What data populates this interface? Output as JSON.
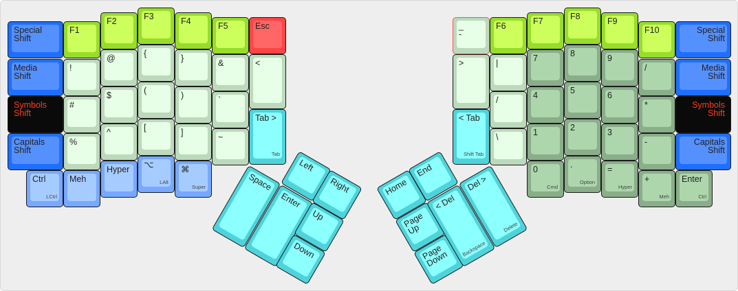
{
  "colors": {
    "blue": "#5590ff",
    "function_green": "#ccff5b",
    "symbol_green": "#e6ffe6",
    "number_green": "#add6ad",
    "cyan": "#8cffff",
    "modifier_blue": "#a6ccff",
    "esc_red": "#ff6666",
    "symbols_shift_text": "#ff3b1e"
  },
  "keys": [
    {
      "label": "Special\nShift",
      "color": "blue"
    },
    {
      "label": "Media\nShift",
      "color": "blue"
    },
    {
      "label": "Symbols\nShift",
      "color": "black"
    },
    {
      "label": "Capitals\nShift",
      "color": "blue"
    },
    {
      "label": "Ctrl",
      "sub": "LCtrl",
      "color": "lblue"
    },
    {
      "label": "F1",
      "color": "fgreen"
    },
    {
      "label": "!",
      "color": "lgreen"
    },
    {
      "label": "#",
      "color": "lgreen"
    },
    {
      "label": "%",
      "color": "lgreen"
    },
    {
      "label": "Meh",
      "color": "lblue"
    },
    {
      "label": "F2",
      "color": "fgreen"
    },
    {
      "label": "@",
      "color": "lgreen"
    },
    {
      "label": "$",
      "color": "lgreen"
    },
    {
      "label": "^",
      "color": "lgreen"
    },
    {
      "label": "Hyper",
      "color": "lblue"
    },
    {
      "label": "F3",
      "color": "fgreen"
    },
    {
      "label": "{",
      "color": "lgreen"
    },
    {
      "label": "(",
      "color": "lgreen"
    },
    {
      "label": "[",
      "color": "lgreen"
    },
    {
      "label": "⌥",
      "sub": "LAlt",
      "color": "lblue"
    },
    {
      "label": "F4",
      "color": "fgreen"
    },
    {
      "label": "}",
      "color": "lgreen"
    },
    {
      "label": ")",
      "color": "lgreen"
    },
    {
      "label": "]",
      "color": "lgreen"
    },
    {
      "label": "⌘",
      "sub": "Super",
      "color": "lblue"
    },
    {
      "label": "F5",
      "color": "fgreen"
    },
    {
      "label": "&",
      "color": "lgreen"
    },
    {
      "label": "`",
      "color": "lgreen"
    },
    {
      "label": "~",
      "color": "lgreen"
    },
    {
      "label": "Esc",
      "color": "red"
    },
    {
      "label": "<",
      "color": "lgreen"
    },
    {
      "label": "Tab >",
      "sub": "Tab",
      "color": "cyan"
    },
    {
      "label": "_\n-",
      "color": "lgreen"
    },
    {
      "label": ">",
      "color": "lgreen"
    },
    {
      "label": "< Tab",
      "sub": "Shift Tab",
      "color": "cyan"
    },
    {
      "label": "F6",
      "color": "fgreen"
    },
    {
      "label": "|",
      "color": "lgreen"
    },
    {
      "label": "/",
      "color": "lgreen"
    },
    {
      "label": "\\",
      "color": "lgreen"
    },
    {
      "label": "F7",
      "color": "fgreen"
    },
    {
      "label": "7",
      "color": "dgreen"
    },
    {
      "label": "4",
      "color": "dgreen"
    },
    {
      "label": "1",
      "color": "dgreen"
    },
    {
      "label": "0",
      "sub": "Cmd",
      "color": "dgreen"
    },
    {
      "label": "F8",
      "color": "fgreen"
    },
    {
      "label": "8",
      "color": "dgreen"
    },
    {
      "label": "5",
      "color": "dgreen"
    },
    {
      "label": "2",
      "color": "dgreen"
    },
    {
      "label": ".",
      "sub": "Option",
      "color": "dgreen"
    },
    {
      "label": "F9",
      "color": "fgreen"
    },
    {
      "label": "9",
      "color": "dgreen"
    },
    {
      "label": "6",
      "color": "dgreen"
    },
    {
      "label": "3",
      "color": "dgreen"
    },
    {
      "label": "=",
      "sub": "Hyper",
      "color": "dgreen"
    },
    {
      "label": "F10",
      "color": "fgreen"
    },
    {
      "label": "/",
      "color": "dgreen"
    },
    {
      "label": "*",
      "color": "dgreen"
    },
    {
      "label": "-",
      "color": "dgreen"
    },
    {
      "label": "+",
      "sub": "Meh",
      "color": "dgreen"
    },
    {
      "label": "Special\nShift",
      "color": "blue",
      "align": "right"
    },
    {
      "label": "Media\nShift",
      "color": "blue",
      "align": "right"
    },
    {
      "label": "Symbols\nShift",
      "color": "black",
      "align": "right"
    },
    {
      "label": "Capitals\nShift",
      "color": "blue",
      "align": "right"
    },
    {
      "label": "Enter",
      "sub": "Ctrl",
      "color": "dgreen"
    },
    {
      "label": "Left",
      "color": "cyan"
    },
    {
      "label": "Right",
      "color": "cyan"
    },
    {
      "label": "Space",
      "color": "cyan"
    },
    {
      "label": "Enter",
      "color": "cyan"
    },
    {
      "label": "Up",
      "color": "cyan"
    },
    {
      "label": "Down",
      "color": "cyan"
    },
    {
      "label": "Home",
      "color": "cyan"
    },
    {
      "label": "End",
      "color": "cyan"
    },
    {
      "label": "Page\nUp",
      "color": "cyan"
    },
    {
      "label": "Page\nDown",
      "color": "cyan"
    },
    {
      "label": "< Del",
      "sub": "Backspace",
      "color": "cyan"
    },
    {
      "label": "Del >",
      "sub": "Delete",
      "color": "cyan"
    }
  ]
}
